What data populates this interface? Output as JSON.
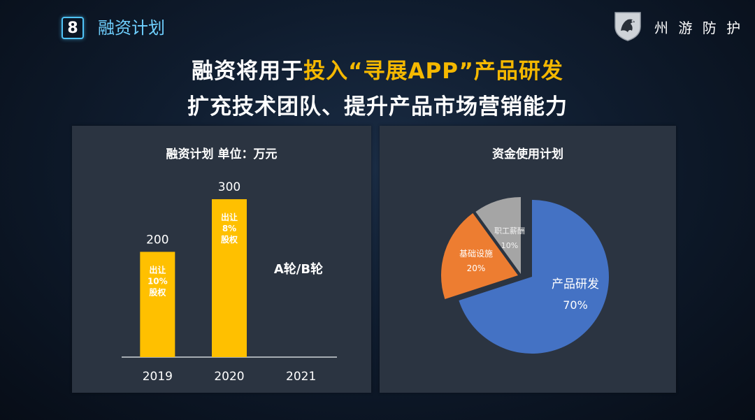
{
  "header": {
    "badge": "8",
    "section_title": "融资计划",
    "brand": "州 游 防 护"
  },
  "headline": {
    "line1_prefix": "融资将用于",
    "line1_accent": "投入“寻展APP”",
    "line1_suffix": "产品研发",
    "line2": "扩充技术团队、提升产品市场营销能力"
  },
  "colors": {
    "bar": "#ffc000",
    "pie_product": "#4472c4",
    "pie_infra": "#ed7d31",
    "pie_staff": "#a5a5a5"
  },
  "chart_data": [
    {
      "type": "bar",
      "title": "融资计划 单位：万元",
      "categories": [
        "2019",
        "2020",
        "2021"
      ],
      "values": [
        200,
        300,
        null
      ],
      "data_labels": [
        "200",
        "300",
        ""
      ],
      "bar_notes": [
        [
          "出让",
          "10%",
          "股权"
        ],
        [
          "出让",
          "8%",
          "股权"
        ],
        []
      ],
      "annotation": "A轮/B轮",
      "ylim": [
        0,
        320
      ],
      "grid": false
    },
    {
      "type": "pie",
      "title": "资金使用计划",
      "slices": [
        {
          "label": "产品研发",
          "value": 70,
          "display": "70%"
        },
        {
          "label": "基础设施",
          "value": 20,
          "display": "20%"
        },
        {
          "label": "职工薪酬",
          "value": 10,
          "display": "10%"
        }
      ]
    }
  ]
}
